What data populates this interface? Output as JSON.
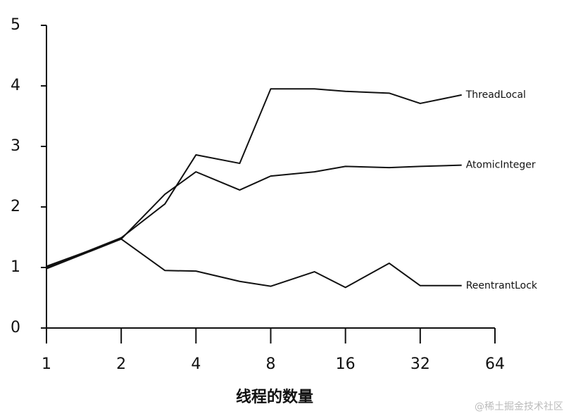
{
  "chart_data": {
    "type": "line",
    "x_label": "线程的数量",
    "watermark": "@稀土掘金技术社区",
    "x_scale": "log2",
    "x": [
      1,
      2,
      3,
      4,
      6,
      8,
      12,
      16,
      24,
      32,
      47
    ],
    "xlim": [
      1,
      64
    ],
    "xticks": [
      1,
      2,
      4,
      8,
      16,
      32,
      64
    ],
    "ylim": [
      0,
      5
    ],
    "yticks": [
      0,
      1,
      2,
      3,
      4,
      5
    ],
    "series": [
      {
        "name": "ThreadLocal",
        "color": "#111111",
        "values": [
          1.0,
          1.49,
          2.05,
          2.86,
          2.72,
          3.95,
          3.95,
          3.91,
          3.88,
          3.71,
          3.85
        ]
      },
      {
        "name": "AtomicInteger",
        "color": "#111111",
        "values": [
          0.98,
          1.47,
          2.21,
          2.58,
          2.28,
          2.51,
          2.58,
          2.67,
          2.65,
          2.67,
          2.69
        ]
      },
      {
        "name": "ReentrantLock",
        "color": "#111111",
        "values": [
          1.02,
          1.47,
          0.95,
          0.94,
          0.77,
          0.69,
          0.93,
          0.67,
          1.07,
          0.7,
          0.7
        ]
      }
    ]
  }
}
